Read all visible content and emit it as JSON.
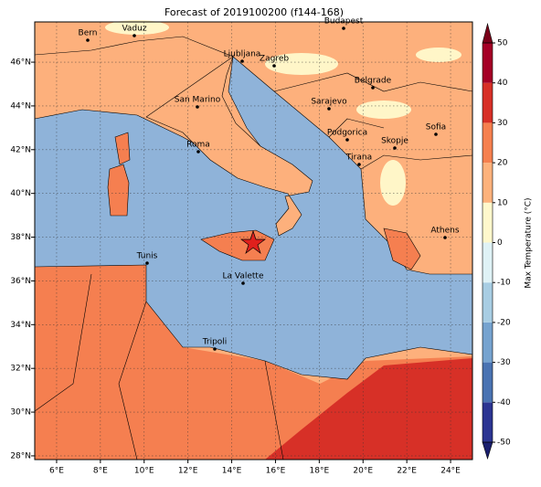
{
  "title": "Forecast of 2019100200 (f144-168)",
  "map": {
    "xlim": [
      5,
      25
    ],
    "ylim": [
      27.83,
      47.84
    ],
    "xticks": [
      {
        "value": 6,
        "label": "6°E"
      },
      {
        "value": 8,
        "label": "8°E"
      },
      {
        "value": 10,
        "label": "10°E"
      },
      {
        "value": 12,
        "label": "12°E"
      },
      {
        "value": 14,
        "label": "14°E"
      },
      {
        "value": 16,
        "label": "16°E"
      },
      {
        "value": 18,
        "label": "18°E"
      },
      {
        "value": 20,
        "label": "20°E"
      },
      {
        "value": 22,
        "label": "22°E"
      },
      {
        "value": 24,
        "label": "24°E"
      }
    ],
    "yticks": [
      {
        "value": 28,
        "label": "28°N"
      },
      {
        "value": 30,
        "label": "30°N"
      },
      {
        "value": 32,
        "label": "32°N"
      },
      {
        "value": 34,
        "label": "34°N"
      },
      {
        "value": 36,
        "label": "36°N"
      },
      {
        "value": 38,
        "label": "38°N"
      },
      {
        "value": 40,
        "label": "40°N"
      },
      {
        "value": 42,
        "label": "42°N"
      },
      {
        "value": 44,
        "label": "44°N"
      },
      {
        "value": 46,
        "label": "46°N"
      }
    ],
    "grid": true,
    "cities": [
      "Bern",
      "Vaduz",
      "Budapest",
      "Ljubljana",
      "Zagreb",
      "Belgrade",
      "San Marino",
      "Sarajevo",
      "Sofia",
      "Roma",
      "Podgorica",
      "Skopje",
      "Tirana",
      "Athens",
      "Tunis",
      "La Valette",
      "Tripoli"
    ]
  },
  "colorbar": {
    "label": "Max Temperature (°C)",
    "ticks": [
      -50,
      -40,
      -30,
      -20,
      -10,
      0,
      10,
      20,
      30,
      40,
      50
    ],
    "colors": [
      "#2c3592",
      "#4a73b2",
      "#76a3cf",
      "#a8cde3",
      "#dff2f6",
      "#fff8cc",
      "#fdb27c",
      "#f5804f",
      "#d73027",
      "#a50026"
    ],
    "extend_colors": [
      "#1a1f6e",
      "#7a0019"
    ]
  }
}
